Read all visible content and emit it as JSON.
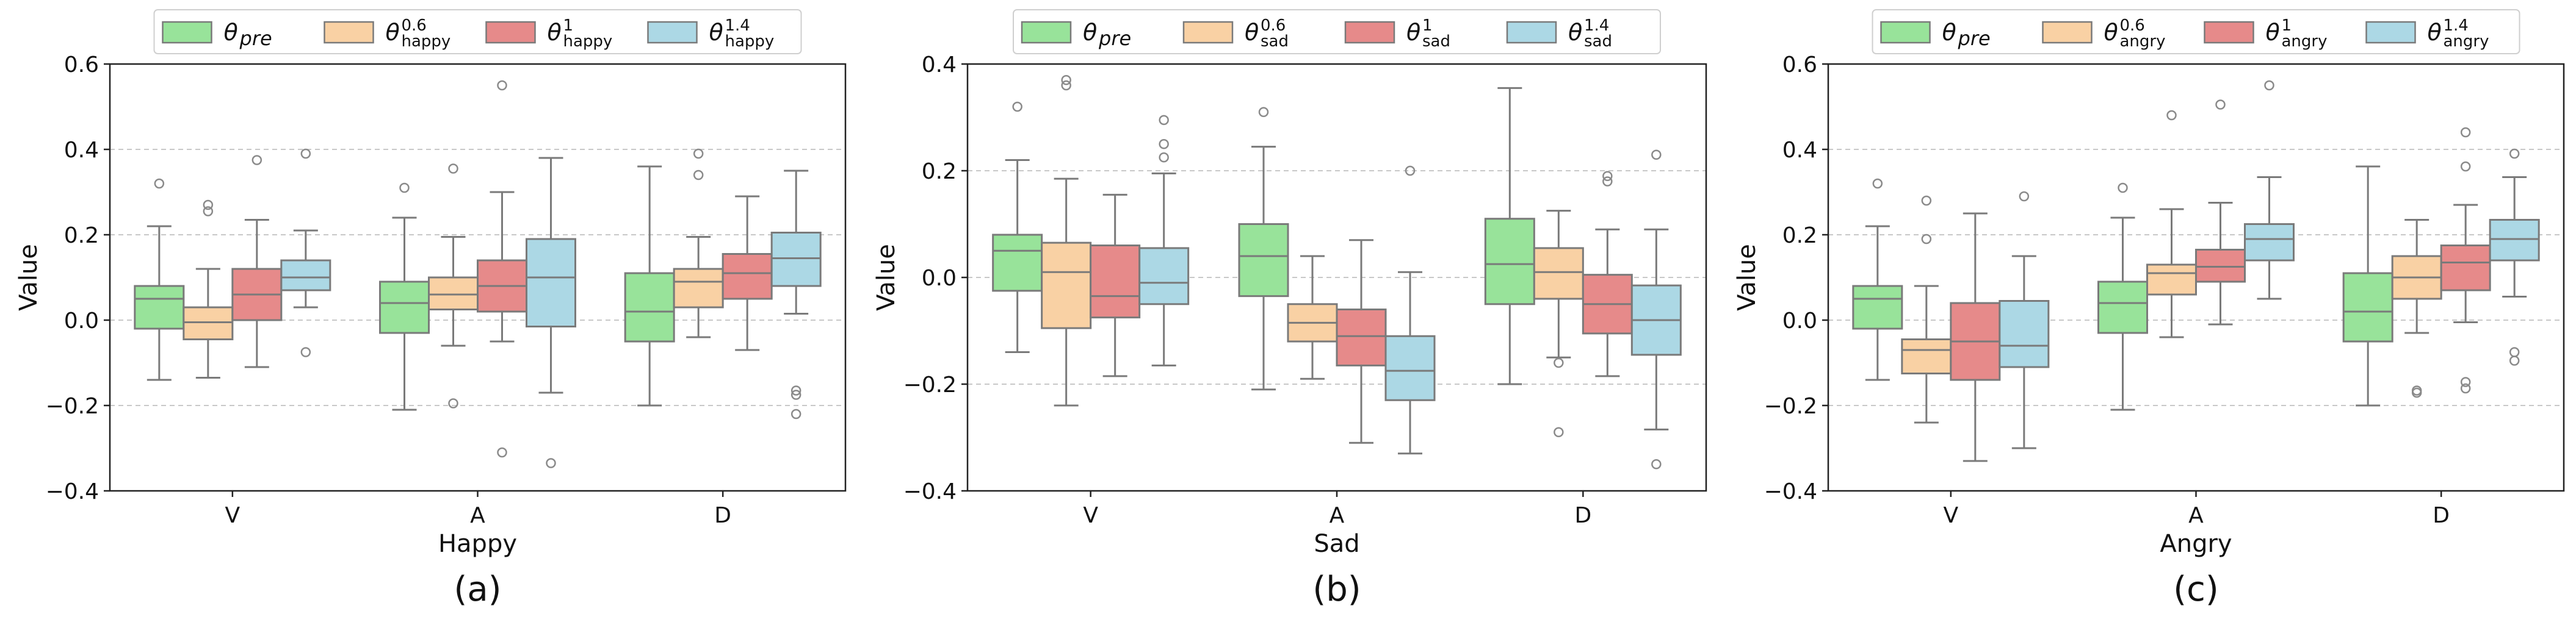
{
  "chart_data": [
    {
      "type": "box",
      "panel_label": "(a)",
      "xlabel": "Happy",
      "ylabel": "Value",
      "ylim": [
        -0.4,
        0.6
      ],
      "yticks": [
        -0.4,
        -0.2,
        0.0,
        0.2,
        0.4,
        0.6
      ],
      "ytick_labels": [
        "−0.4",
        "−0.2",
        "0.0",
        "0.2",
        "0.4",
        "0.6"
      ],
      "grid": "horizontal dashed",
      "categories": [
        "V",
        "A",
        "D"
      ],
      "legend": {
        "placement": "top",
        "entries": [
          {
            "main": "θ",
            "sub": "pre",
            "sup": ""
          },
          {
            "main": "θ",
            "sub": "happy",
            "sup": "0.6"
          },
          {
            "main": "θ",
            "sub": "happy",
            "sup": "1"
          },
          {
            "main": "θ",
            "sub": "happy",
            "sup": "1.4"
          }
        ]
      },
      "series": [
        {
          "name": "θ_pre",
          "color": "#98e39a",
          "boxes": [
            {
              "min": -0.14,
              "q1": -0.02,
              "median": 0.05,
              "q3": 0.08,
              "max": 0.22,
              "fliers": [
                0.32
              ]
            },
            {
              "min": -0.21,
              "q1": -0.03,
              "median": 0.04,
              "q3": 0.09,
              "max": 0.24,
              "fliers": [
                0.31
              ]
            },
            {
              "min": -0.2,
              "q1": -0.05,
              "median": 0.02,
              "q3": 0.11,
              "max": 0.36,
              "fliers": []
            }
          ]
        },
        {
          "name": "θ^0.6_happy",
          "color": "#f9d1a4",
          "boxes": [
            {
              "min": -0.135,
              "q1": -0.045,
              "median": -0.005,
              "q3": 0.03,
              "max": 0.12,
              "fliers": [
                0.255,
                0.27
              ]
            },
            {
              "min": -0.06,
              "q1": 0.025,
              "median": 0.06,
              "q3": 0.1,
              "max": 0.195,
              "fliers": [
                0.355,
                -0.195
              ]
            },
            {
              "min": -0.04,
              "q1": 0.03,
              "median": 0.09,
              "q3": 0.12,
              "max": 0.195,
              "fliers": [
                0.39,
                0.34
              ]
            }
          ]
        },
        {
          "name": "θ^1_happy",
          "color": "#e68a8a",
          "boxes": [
            {
              "min": -0.11,
              "q1": 0.0,
              "median": 0.06,
              "q3": 0.12,
              "max": 0.235,
              "fliers": [
                0.375
              ]
            },
            {
              "min": -0.05,
              "q1": 0.02,
              "median": 0.08,
              "q3": 0.14,
              "max": 0.3,
              "fliers": [
                0.55,
                -0.31
              ]
            },
            {
              "min": -0.07,
              "q1": 0.05,
              "median": 0.11,
              "q3": 0.155,
              "max": 0.29,
              "fliers": []
            }
          ]
        },
        {
          "name": "θ^1.4_happy",
          "color": "#acd8e5",
          "boxes": [
            {
              "min": 0.03,
              "q1": 0.07,
              "median": 0.1,
              "q3": 0.14,
              "max": 0.21,
              "fliers": [
                0.39,
                -0.075
              ]
            },
            {
              "min": -0.17,
              "q1": -0.015,
              "median": 0.1,
              "q3": 0.19,
              "max": 0.38,
              "fliers": [
                -0.335
              ]
            },
            {
              "min": 0.015,
              "q1": 0.08,
              "median": 0.145,
              "q3": 0.205,
              "max": 0.35,
              "fliers": [
                -0.165,
                -0.175,
                -0.22
              ]
            }
          ]
        }
      ]
    },
    {
      "type": "box",
      "panel_label": "(b)",
      "xlabel": "Sad",
      "ylabel": "Value",
      "ylim": [
        -0.4,
        0.4
      ],
      "yticks": [
        -0.4,
        -0.2,
        0.0,
        0.2,
        0.4
      ],
      "ytick_labels": [
        "−0.4",
        "−0.2",
        "0.0",
        "0.2",
        "0.4"
      ],
      "grid": "horizontal dashed",
      "categories": [
        "V",
        "A",
        "D"
      ],
      "legend": {
        "placement": "top",
        "entries": [
          {
            "main": "θ",
            "sub": "pre",
            "sup": ""
          },
          {
            "main": "θ",
            "sub": "sad",
            "sup": "0.6"
          },
          {
            "main": "θ",
            "sub": "sad",
            "sup": "1"
          },
          {
            "main": "θ",
            "sub": "sad",
            "sup": "1.4"
          }
        ]
      },
      "series": [
        {
          "name": "θ_pre",
          "color": "#98e39a",
          "boxes": [
            {
              "min": -0.14,
              "q1": -0.025,
              "median": 0.05,
              "q3": 0.08,
              "max": 0.22,
              "fliers": [
                0.32
              ]
            },
            {
              "min": -0.21,
              "q1": -0.035,
              "median": 0.04,
              "q3": 0.1,
              "max": 0.245,
              "fliers": [
                0.31
              ]
            },
            {
              "min": -0.2,
              "q1": -0.05,
              "median": 0.025,
              "q3": 0.11,
              "max": 0.355,
              "fliers": []
            }
          ]
        },
        {
          "name": "θ^0.6_sad",
          "color": "#f9d1a4",
          "boxes": [
            {
              "min": -0.24,
              "q1": -0.095,
              "median": 0.01,
              "q3": 0.065,
              "max": 0.185,
              "fliers": [
                0.36,
                0.37
              ]
            },
            {
              "min": -0.19,
              "q1": -0.12,
              "median": -0.085,
              "q3": -0.05,
              "max": 0.04,
              "fliers": []
            },
            {
              "min": -0.15,
              "q1": -0.04,
              "median": 0.01,
              "q3": 0.055,
              "max": 0.125,
              "fliers": [
                -0.16,
                -0.29
              ]
            }
          ]
        },
        {
          "name": "θ^1_sad",
          "color": "#e68a8a",
          "boxes": [
            {
              "min": -0.185,
              "q1": -0.075,
              "median": -0.035,
              "q3": 0.06,
              "max": 0.155,
              "fliers": []
            },
            {
              "min": -0.31,
              "q1": -0.165,
              "median": -0.11,
              "q3": -0.06,
              "max": 0.07,
              "fliers": []
            },
            {
              "min": -0.185,
              "q1": -0.105,
              "median": -0.05,
              "q3": 0.005,
              "max": 0.09,
              "fliers": [
                0.18,
                0.19
              ]
            }
          ]
        },
        {
          "name": "θ^1.4_sad",
          "color": "#acd8e5",
          "boxes": [
            {
              "min": -0.165,
              "q1": -0.05,
              "median": -0.01,
              "q3": 0.055,
              "max": 0.195,
              "fliers": [
                0.225,
                0.25,
                0.295
              ]
            },
            {
              "min": -0.33,
              "q1": -0.23,
              "median": -0.175,
              "q3": -0.11,
              "max": 0.01,
              "fliers": [
                0.2
              ]
            },
            {
              "min": -0.285,
              "q1": -0.145,
              "median": -0.08,
              "q3": -0.015,
              "max": 0.09,
              "fliers": [
                0.23,
                -0.35
              ]
            }
          ]
        }
      ]
    },
    {
      "type": "box",
      "panel_label": "(c)",
      "xlabel": "Angry",
      "ylabel": "Value",
      "ylim": [
        -0.4,
        0.6
      ],
      "yticks": [
        -0.4,
        -0.2,
        0.0,
        0.2,
        0.4,
        0.6
      ],
      "ytick_labels": [
        "−0.4",
        "−0.2",
        "0.0",
        "0.2",
        "0.4",
        "0.6"
      ],
      "grid": "horizontal dashed",
      "categories": [
        "V",
        "A",
        "D"
      ],
      "legend": {
        "placement": "top",
        "entries": [
          {
            "main": "θ",
            "sub": "pre",
            "sup": ""
          },
          {
            "main": "θ",
            "sub": "angry",
            "sup": "0.6"
          },
          {
            "main": "θ",
            "sub": "angry",
            "sup": "1"
          },
          {
            "main": "θ",
            "sub": "angry",
            "sup": "1.4"
          }
        ]
      },
      "series": [
        {
          "name": "θ_pre",
          "color": "#98e39a",
          "boxes": [
            {
              "min": -0.14,
              "q1": -0.02,
              "median": 0.05,
              "q3": 0.08,
              "max": 0.22,
              "fliers": [
                0.32
              ]
            },
            {
              "min": -0.21,
              "q1": -0.03,
              "median": 0.04,
              "q3": 0.09,
              "max": 0.24,
              "fliers": [
                0.31
              ]
            },
            {
              "min": -0.2,
              "q1": -0.05,
              "median": 0.02,
              "q3": 0.11,
              "max": 0.36,
              "fliers": []
            }
          ]
        },
        {
          "name": "θ^0.6_angry",
          "color": "#f9d1a4",
          "boxes": [
            {
              "min": -0.24,
              "q1": -0.125,
              "median": -0.07,
              "q3": -0.045,
              "max": 0.08,
              "fliers": [
                0.19,
                0.28
              ]
            },
            {
              "min": -0.04,
              "q1": 0.06,
              "median": 0.11,
              "q3": 0.13,
              "max": 0.26,
              "fliers": [
                0.48
              ]
            },
            {
              "min": -0.03,
              "q1": 0.05,
              "median": 0.1,
              "q3": 0.15,
              "max": 0.235,
              "fliers": [
                -0.165,
                -0.17
              ]
            }
          ]
        },
        {
          "name": "θ^1_angry",
          "color": "#e68a8a",
          "boxes": [
            {
              "min": -0.33,
              "q1": -0.14,
              "median": -0.05,
              "q3": 0.04,
              "max": 0.25,
              "fliers": []
            },
            {
              "min": -0.01,
              "q1": 0.09,
              "median": 0.125,
              "q3": 0.165,
              "max": 0.275,
              "fliers": [
                0.505
              ]
            },
            {
              "min": -0.005,
              "q1": 0.07,
              "median": 0.135,
              "q3": 0.175,
              "max": 0.27,
              "fliers": [
                0.44,
                0.36,
                -0.145,
                -0.16
              ]
            }
          ]
        },
        {
          "name": "θ^1.4_angry",
          "color": "#acd8e5",
          "boxes": [
            {
              "min": -0.3,
              "q1": -0.11,
              "median": -0.06,
              "q3": 0.045,
              "max": 0.15,
              "fliers": [
                0.29
              ]
            },
            {
              "min": 0.05,
              "q1": 0.14,
              "median": 0.19,
              "q3": 0.225,
              "max": 0.335,
              "fliers": [
                0.55
              ]
            },
            {
              "min": 0.055,
              "q1": 0.14,
              "median": 0.19,
              "q3": 0.235,
              "max": 0.335,
              "fliers": [
                0.39,
                -0.075,
                -0.095
              ]
            }
          ]
        }
      ]
    }
  ]
}
